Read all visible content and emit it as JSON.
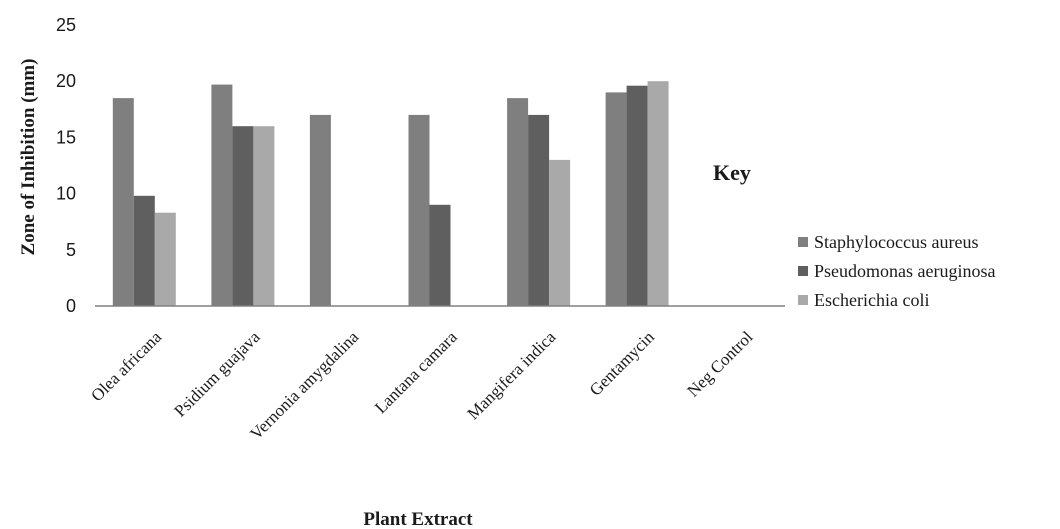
{
  "chart_data": {
    "type": "bar",
    "title": "",
    "xlabel": "Plant Extract",
    "ylabel": "Zone of Inhibition (mm)",
    "ylim": [
      0,
      25
    ],
    "yticks": [
      "0",
      "5",
      "10",
      "15",
      "20",
      "25"
    ],
    "grid": false,
    "legend_position": "right",
    "key_label": "Key",
    "categories": [
      "Olea africana",
      "Psidium guajava",
      "Vernonia amygdalina",
      "Lantana camara",
      "Mangifera indica",
      "Gentamycin",
      "Neg Control"
    ],
    "series": [
      {
        "name": "Staphylococcus aureus",
        "color": "#7f7f7f",
        "values": [
          18.5,
          19.7,
          17.0,
          17.0,
          18.5,
          19.0,
          0
        ]
      },
      {
        "name": "Pseudomonas aeruginosa",
        "color": "#5f5f5f",
        "values": [
          9.8,
          16.0,
          0,
          9.0,
          17.0,
          19.6,
          0
        ]
      },
      {
        "name": "Escherichia coli",
        "color": "#a9a9a9",
        "values": [
          8.3,
          16.0,
          0,
          0,
          13.0,
          20.0,
          0
        ]
      }
    ]
  }
}
